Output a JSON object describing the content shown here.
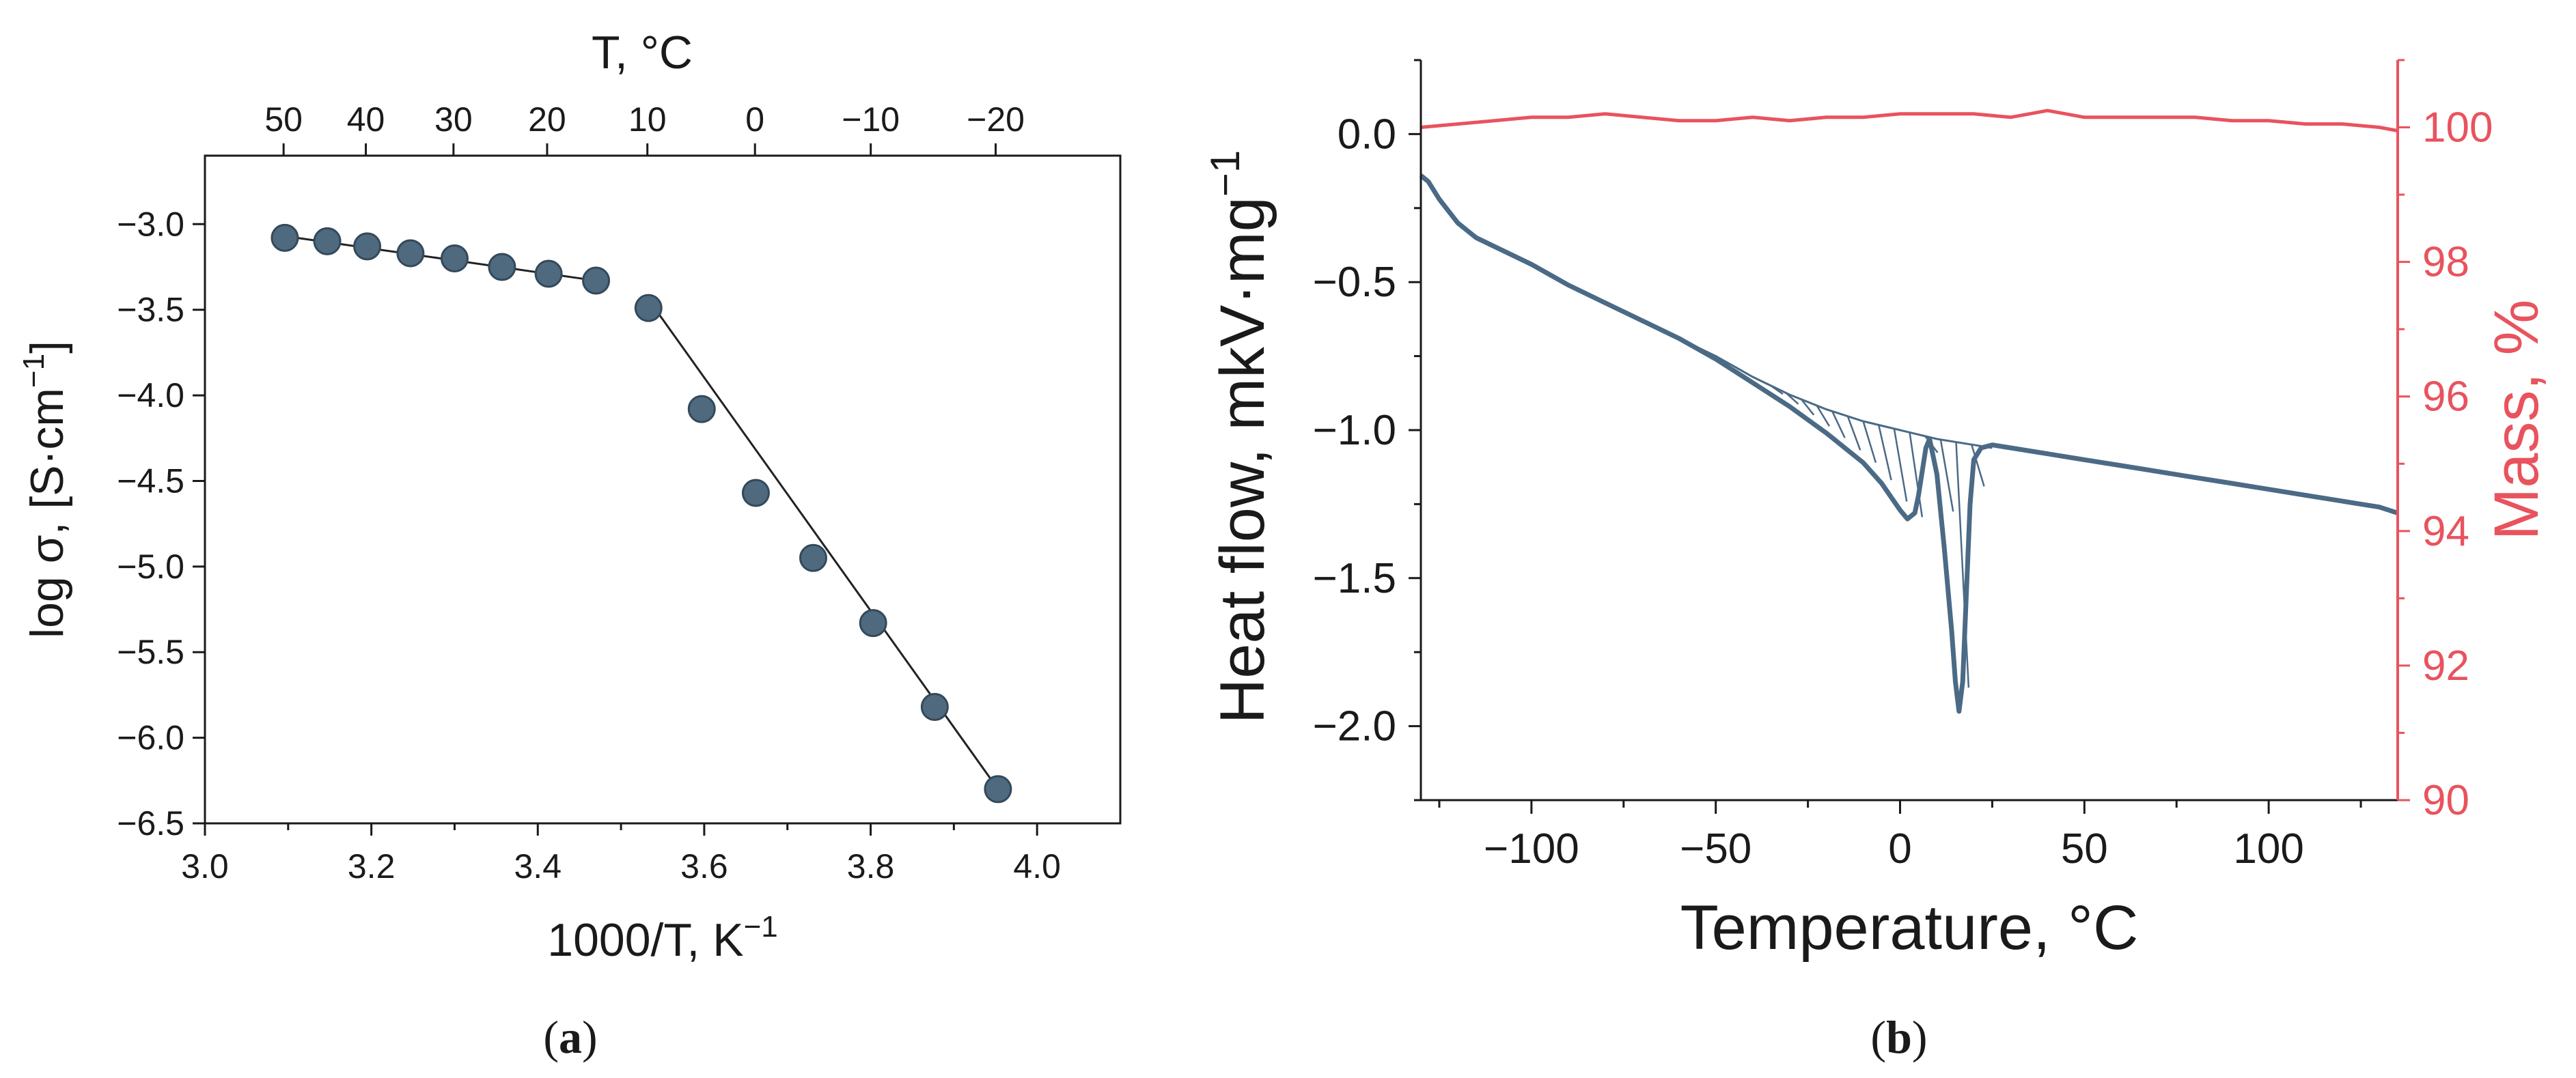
{
  "colors": {
    "marker": "#4f6a7e",
    "marker_edge": "#34495a",
    "heat": "#4b6a85",
    "mass": "#e8535e",
    "axis": "#1a1a1a"
  },
  "chart_data": [
    {
      "id": "a",
      "type": "scatter",
      "panel_label": "a",
      "xlabel": "1000/T, K",
      "xlabel_sup": "−1",
      "ylabel": "log σ, [S·cm",
      "ylabel_sup": "−1",
      "ylabel_tail": "]",
      "top_axis_label": "T, °C",
      "xlim": [
        3.0,
        4.1
      ],
      "ylim": [
        -6.5,
        -2.6
      ],
      "x_ticks": [
        3.0,
        3.2,
        3.4,
        3.6,
        3.8,
        4.0
      ],
      "x_tick_labels": [
        "3.0",
        "3.2",
        "3.4",
        "3.6",
        "3.8",
        "4.0"
      ],
      "y_ticks": [
        -3.0,
        -3.5,
        -4.0,
        -4.5,
        -5.0,
        -5.5,
        -6.0,
        -6.5
      ],
      "y_tick_labels": [
        "−3.0",
        "−3.5",
        "−4.0",
        "−4.5",
        "−5.0",
        "−5.5",
        "−6.0",
        "−6.5"
      ],
      "top_ticks_celsius": [
        50,
        40,
        30,
        20,
        10,
        0,
        -10,
        -20
      ],
      "top_tick_labels": [
        "50",
        "40",
        "30",
        "20",
        "10",
        "0",
        "−10",
        "−20"
      ],
      "points": [
        {
          "x": 3.096,
          "y": -3.08
        },
        {
          "x": 3.147,
          "y": -3.1
        },
        {
          "x": 3.195,
          "y": -3.13
        },
        {
          "x": 3.247,
          "y": -3.17
        },
        {
          "x": 3.3,
          "y": -3.2
        },
        {
          "x": 3.357,
          "y": -3.25
        },
        {
          "x": 3.413,
          "y": -3.29
        },
        {
          "x": 3.47,
          "y": -3.33
        },
        {
          "x": 3.533,
          "y": -3.49
        },
        {
          "x": 3.597,
          "y": -4.08
        },
        {
          "x": 3.662,
          "y": -4.57
        },
        {
          "x": 3.731,
          "y": -4.95
        },
        {
          "x": 3.803,
          "y": -5.33
        },
        {
          "x": 3.877,
          "y": -5.82
        },
        {
          "x": 3.953,
          "y": -6.3
        }
      ],
      "fit_lines": [
        {
          "x": [
            3.096,
            3.47
          ],
          "y": [
            -3.07,
            -3.33
          ]
        },
        {
          "x": [
            3.533,
            3.953
          ],
          "y": [
            -3.44,
            -6.3
          ]
        }
      ]
    },
    {
      "id": "b",
      "type": "line",
      "panel_label": "b",
      "xlabel": "Temperature, °C",
      "ylabel_left": "Heat flow, mkV·mg",
      "ylabel_left_sup": "−1",
      "ylabel_right": "Mass, %",
      "xlim": [
        -130,
        135
      ],
      "ylim_left": [
        -2.25,
        0.25
      ],
      "ylim_right": [
        90,
        101
      ],
      "x_ticks": [
        -100,
        -50,
        0,
        50,
        100
      ],
      "x_tick_labels": [
        "−100",
        "−50",
        "0",
        "50",
        "100"
      ],
      "y_left_ticks": [
        0.0,
        -0.5,
        -1.0,
        -1.5,
        -2.0
      ],
      "y_left_tick_labels": [
        "0.0",
        "−0.5",
        "−1.0",
        "−1.5",
        "−2.0"
      ],
      "y_right_ticks": [
        100,
        98,
        96,
        94,
        92,
        90
      ],
      "y_right_tick_labels": [
        "100",
        "98",
        "96",
        "94",
        "92",
        "90"
      ],
      "series": [
        {
          "name": "Heat flow",
          "axis": "left",
          "x": [
            -130,
            -128,
            -125,
            -120,
            -115,
            -110,
            -100,
            -90,
            -80,
            -70,
            -60,
            -50,
            -40,
            -30,
            -20,
            -10,
            -5,
            0,
            2,
            4,
            5,
            6,
            7,
            8,
            10,
            12,
            14,
            15,
            16,
            17,
            18,
            19,
            20,
            22,
            25,
            30,
            40,
            50,
            60,
            70,
            80,
            90,
            100,
            110,
            120,
            125,
            130,
            135
          ],
          "y": [
            -0.14,
            -0.16,
            -0.22,
            -0.3,
            -0.35,
            -0.38,
            -0.44,
            -0.51,
            -0.57,
            -0.63,
            -0.69,
            -0.76,
            -0.84,
            -0.92,
            -1.01,
            -1.11,
            -1.18,
            -1.27,
            -1.3,
            -1.28,
            -1.22,
            -1.14,
            -1.06,
            -1.03,
            -1.15,
            -1.4,
            -1.68,
            -1.85,
            -1.95,
            -1.85,
            -1.55,
            -1.25,
            -1.1,
            -1.06,
            -1.05,
            -1.06,
            -1.08,
            -1.1,
            -1.12,
            -1.14,
            -1.16,
            -1.18,
            -1.2,
            -1.22,
            -1.24,
            -1.25,
            -1.26,
            -1.28
          ]
        },
        {
          "name": "Baseline",
          "axis": "left",
          "x": [
            -60,
            -50,
            -40,
            -30,
            -20,
            -10,
            0,
            10,
            20,
            25
          ],
          "y": [
            -0.69,
            -0.75,
            -0.82,
            -0.88,
            -0.93,
            -0.97,
            -1.0,
            -1.03,
            -1.05,
            -1.06
          ]
        },
        {
          "name": "Mass",
          "axis": "right",
          "x": [
            -130,
            -120,
            -110,
            -100,
            -90,
            -80,
            -70,
            -60,
            -50,
            -40,
            -30,
            -20,
            -10,
            0,
            10,
            20,
            30,
            40,
            50,
            60,
            70,
            80,
            90,
            100,
            110,
            120,
            130,
            135
          ],
          "y": [
            100.0,
            100.05,
            100.1,
            100.15,
            100.15,
            100.2,
            100.15,
            100.1,
            100.1,
            100.15,
            100.1,
            100.15,
            100.15,
            100.2,
            100.2,
            100.2,
            100.15,
            100.25,
            100.15,
            100.15,
            100.15,
            100.15,
            100.1,
            100.1,
            100.05,
            100.05,
            100.0,
            99.95
          ]
        }
      ]
    }
  ]
}
